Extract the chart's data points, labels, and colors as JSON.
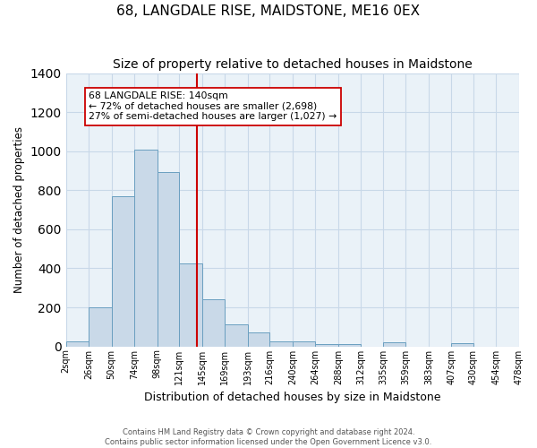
{
  "title": "68, LANGDALE RISE, MAIDSTONE, ME16 0EX",
  "subtitle": "Size of property relative to detached houses in Maidstone",
  "xlabel": "Distribution of detached houses by size in Maidstone",
  "ylabel": "Number of detached properties",
  "bin_labels": [
    "2sqm",
    "26sqm",
    "50sqm",
    "74sqm",
    "98sqm",
    "121sqm",
    "145sqm",
    "169sqm",
    "193sqm",
    "216sqm",
    "240sqm",
    "264sqm",
    "288sqm",
    "312sqm",
    "335sqm",
    "359sqm",
    "383sqm",
    "407sqm",
    "430sqm",
    "454sqm",
    "478sqm"
  ],
  "bin_edges": [
    2,
    26,
    50,
    74,
    98,
    121,
    145,
    169,
    193,
    216,
    240,
    264,
    288,
    312,
    335,
    359,
    383,
    407,
    430,
    454,
    478
  ],
  "bar_heights": [
    25,
    200,
    770,
    1010,
    895,
    425,
    240,
    113,
    70,
    25,
    25,
    12,
    12,
    0,
    20,
    0,
    0,
    15,
    0,
    0
  ],
  "bar_color": "#c9d9e8",
  "bar_edge_color": "#6a9fc0",
  "property_size": 140,
  "vline_color": "#cc0000",
  "annotation_text": "68 LANGDALE RISE: 140sqm\n← 72% of detached houses are smaller (2,698)\n27% of semi-detached houses are larger (1,027) →",
  "annotation_box_color": "#ffffff",
  "annotation_box_edge": "#cc0000",
  "ylim": [
    0,
    1400
  ],
  "yticks": [
    0,
    200,
    400,
    600,
    800,
    1000,
    1200,
    1400
  ],
  "grid_color": "#c8d8e8",
  "background_color": "#eaf2f8",
  "footer_line1": "Contains HM Land Registry data © Crown copyright and database right 2024.",
  "footer_line2": "Contains public sector information licensed under the Open Government Licence v3.0.",
  "title_fontsize": 11,
  "subtitle_fontsize": 10,
  "ylabel_fontsize": 8.5,
  "xlabel_fontsize": 9
}
